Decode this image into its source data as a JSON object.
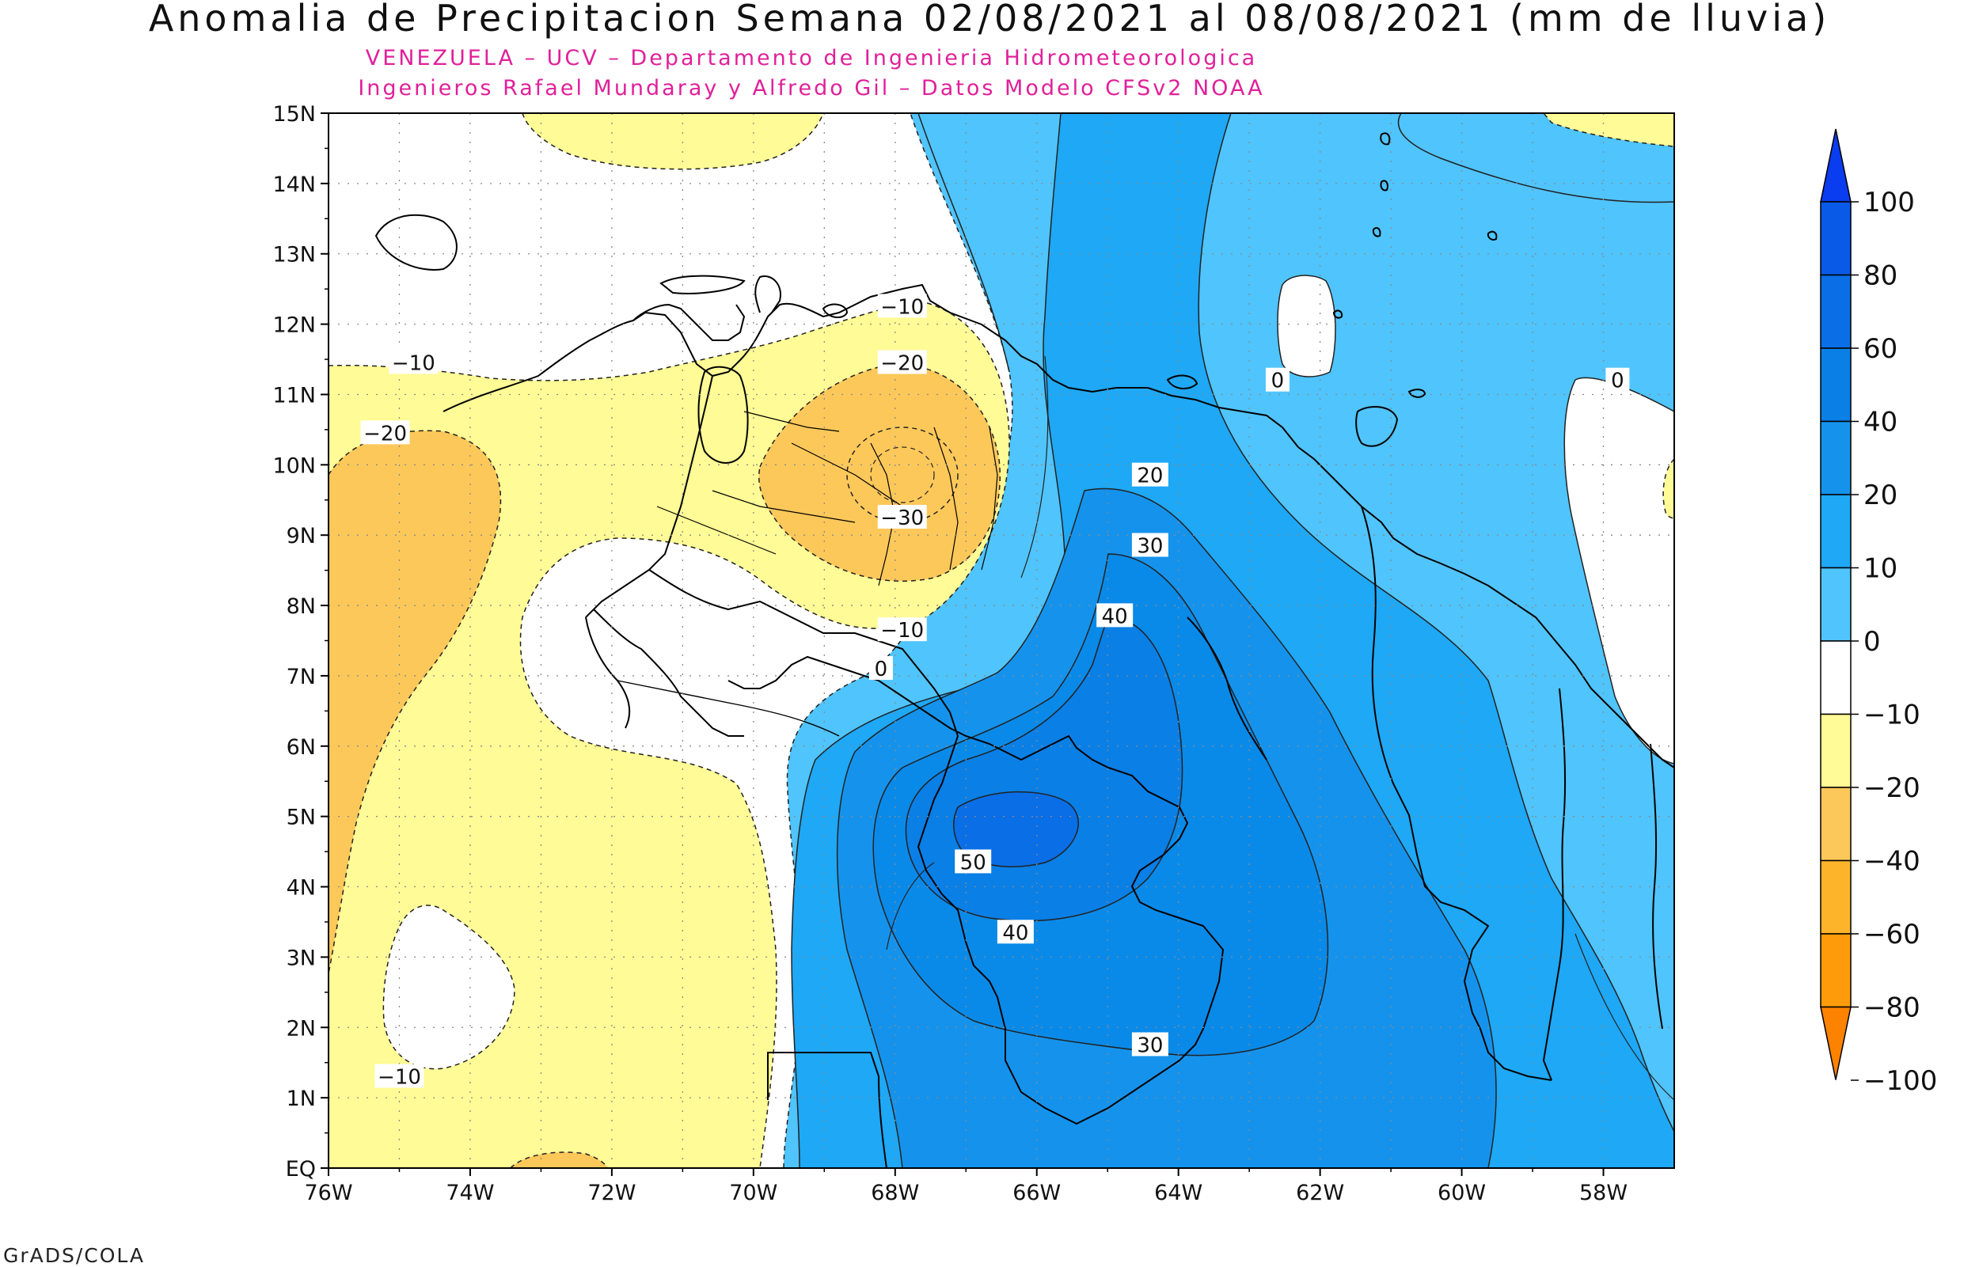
{
  "title": "Anomalia de Precipitacion Semana 02/08/2021 al 08/08/2021 (mm de lluvia)",
  "subtitle_line1": "VENEZUELA – UCV – Departamento de Ingenieria Hidrometeorologica",
  "subtitle_line2": "Ingenieros Rafael Mundaray y Alfredo Gil – Datos Modelo CFSv2 NOAA",
  "credit": "GrADS/COLA",
  "map": {
    "lon_range": [
      -76,
      -57
    ],
    "lat_range": [
      0,
      15
    ],
    "lat_ticks": [
      "15N",
      "14N",
      "13N",
      "12N",
      "11N",
      "10N",
      "9N",
      "8N",
      "7N",
      "6N",
      "5N",
      "4N",
      "3N",
      "2N",
      "1N",
      "EQ"
    ],
    "lon_ticks": [
      "76W",
      "74W",
      "72W",
      "70W",
      "68W",
      "66W",
      "64W",
      "62W",
      "60W",
      "58W"
    ],
    "contour_labels": [
      {
        "text": "−10",
        "lon": -74.8,
        "lat": 11.45
      },
      {
        "text": "−20",
        "lon": -75.2,
        "lat": 10.45
      },
      {
        "text": "−10",
        "lon": -67.9,
        "lat": 12.25
      },
      {
        "text": "−20",
        "lon": -67.9,
        "lat": 11.45
      },
      {
        "text": "−30",
        "lon": -67.9,
        "lat": 9.25
      },
      {
        "text": "−10",
        "lon": -67.9,
        "lat": 7.65
      },
      {
        "text": "0",
        "lon": -68.2,
        "lat": 7.1
      },
      {
        "text": "0",
        "lon": -62.6,
        "lat": 11.2
      },
      {
        "text": "0",
        "lon": -57.8,
        "lat": 11.2
      },
      {
        "text": "20",
        "lon": -64.4,
        "lat": 9.85
      },
      {
        "text": "30",
        "lon": -64.4,
        "lat": 8.85
      },
      {
        "text": "40",
        "lon": -64.9,
        "lat": 7.85
      },
      {
        "text": "50",
        "lon": -66.9,
        "lat": 4.35
      },
      {
        "text": "40",
        "lon": -66.3,
        "lat": 3.35
      },
      {
        "text": "30",
        "lon": -64.4,
        "lat": 1.75
      },
      {
        "text": "−10",
        "lon": -75.0,
        "lat": 1.3
      }
    ]
  },
  "legend": {
    "labels": [
      "100",
      "80",
      "60",
      "40",
      "20",
      "10",
      "0",
      "−10",
      "−20",
      "−40",
      "−60",
      "−80",
      "−100"
    ],
    "colors": [
      "#0a3cf0",
      "#0a5ae8",
      "#0a6ee6",
      "#0a7fe6",
      "#1593ec",
      "#1ea8f5",
      "#50c4fc",
      "#ffffff",
      "#fffb96",
      "#fdc85a",
      "#fdb42a",
      "#fd9b0a",
      "#fd8200"
    ]
  },
  "colors": {
    "neg10": "#fffb96",
    "neg20": "#fdc85a",
    "pos0": "#50c4fc",
    "pos10": "#1ea8f5",
    "pos20": "#1593ec",
    "pos30": "#0a8ae8",
    "pos40": "#0a7fe6",
    "pos50": "#0a6ee6"
  }
}
